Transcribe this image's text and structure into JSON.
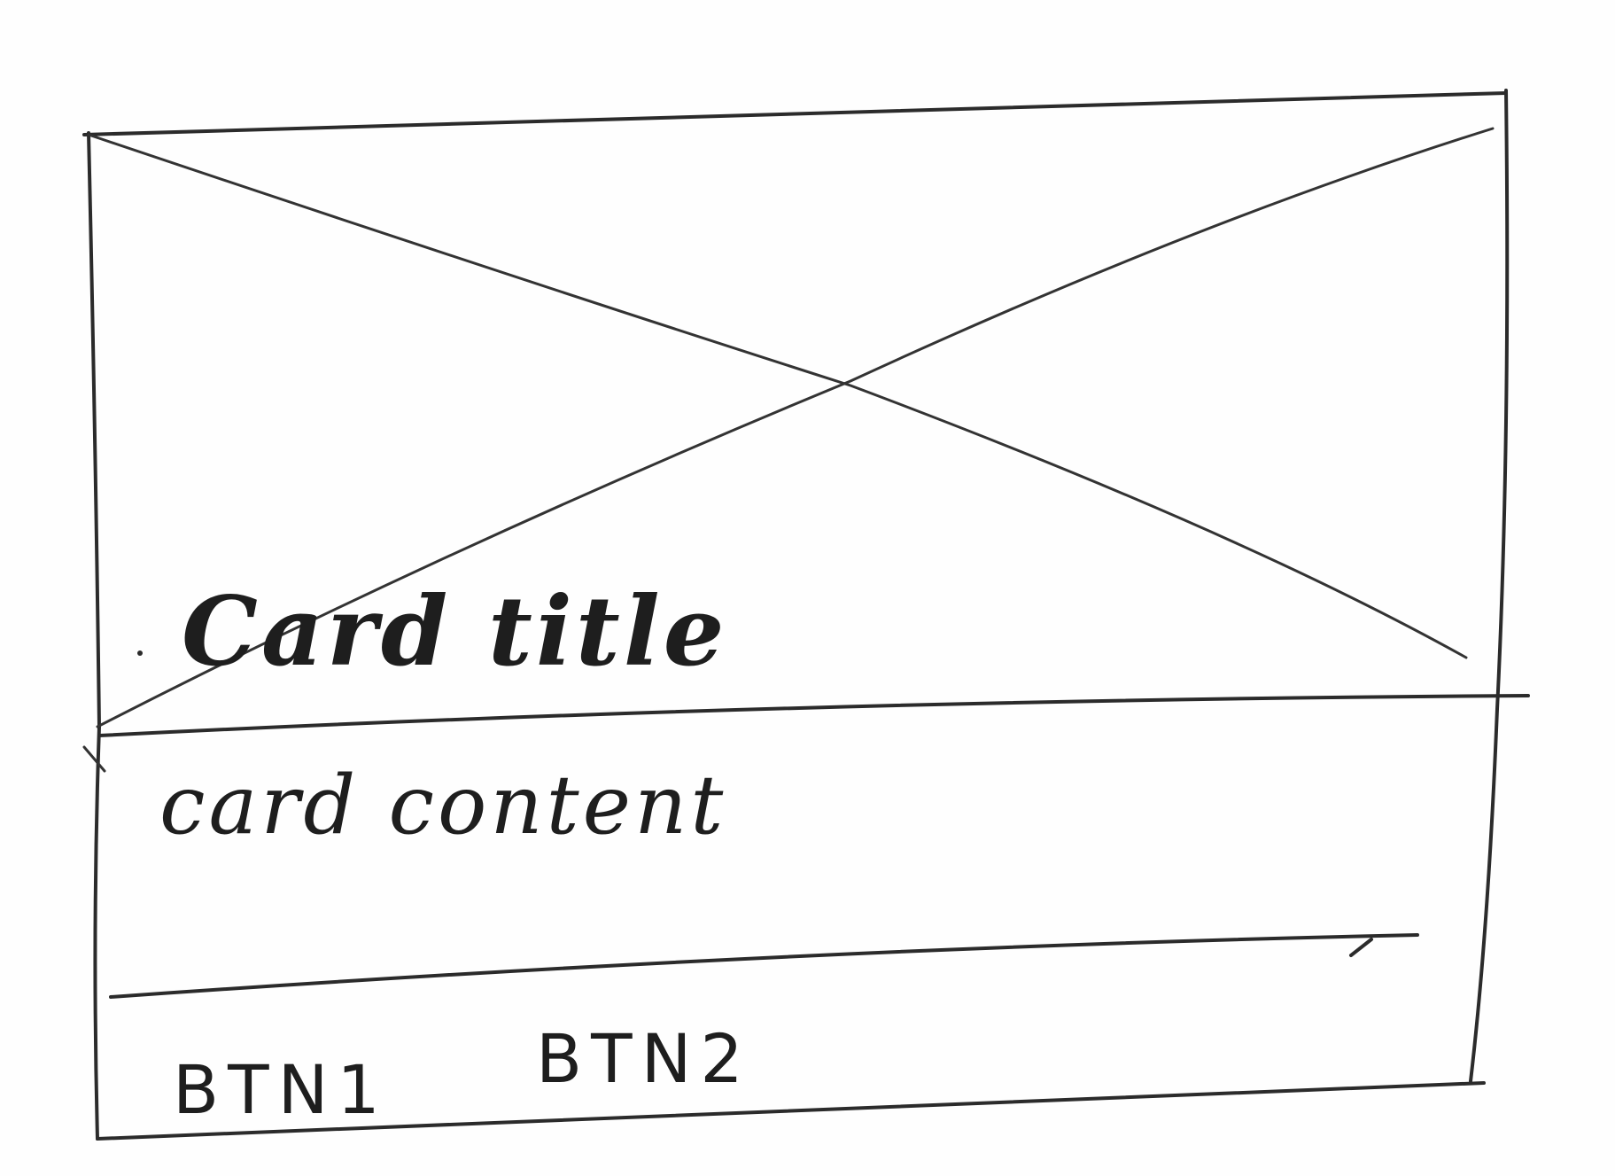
{
  "card": {
    "title": "Card title",
    "content": "card content",
    "buttons": [
      {
        "label": "BTN1"
      },
      {
        "label": "BTN2"
      }
    ]
  },
  "image_placeholder": {
    "icon": "image-placeholder-x"
  }
}
